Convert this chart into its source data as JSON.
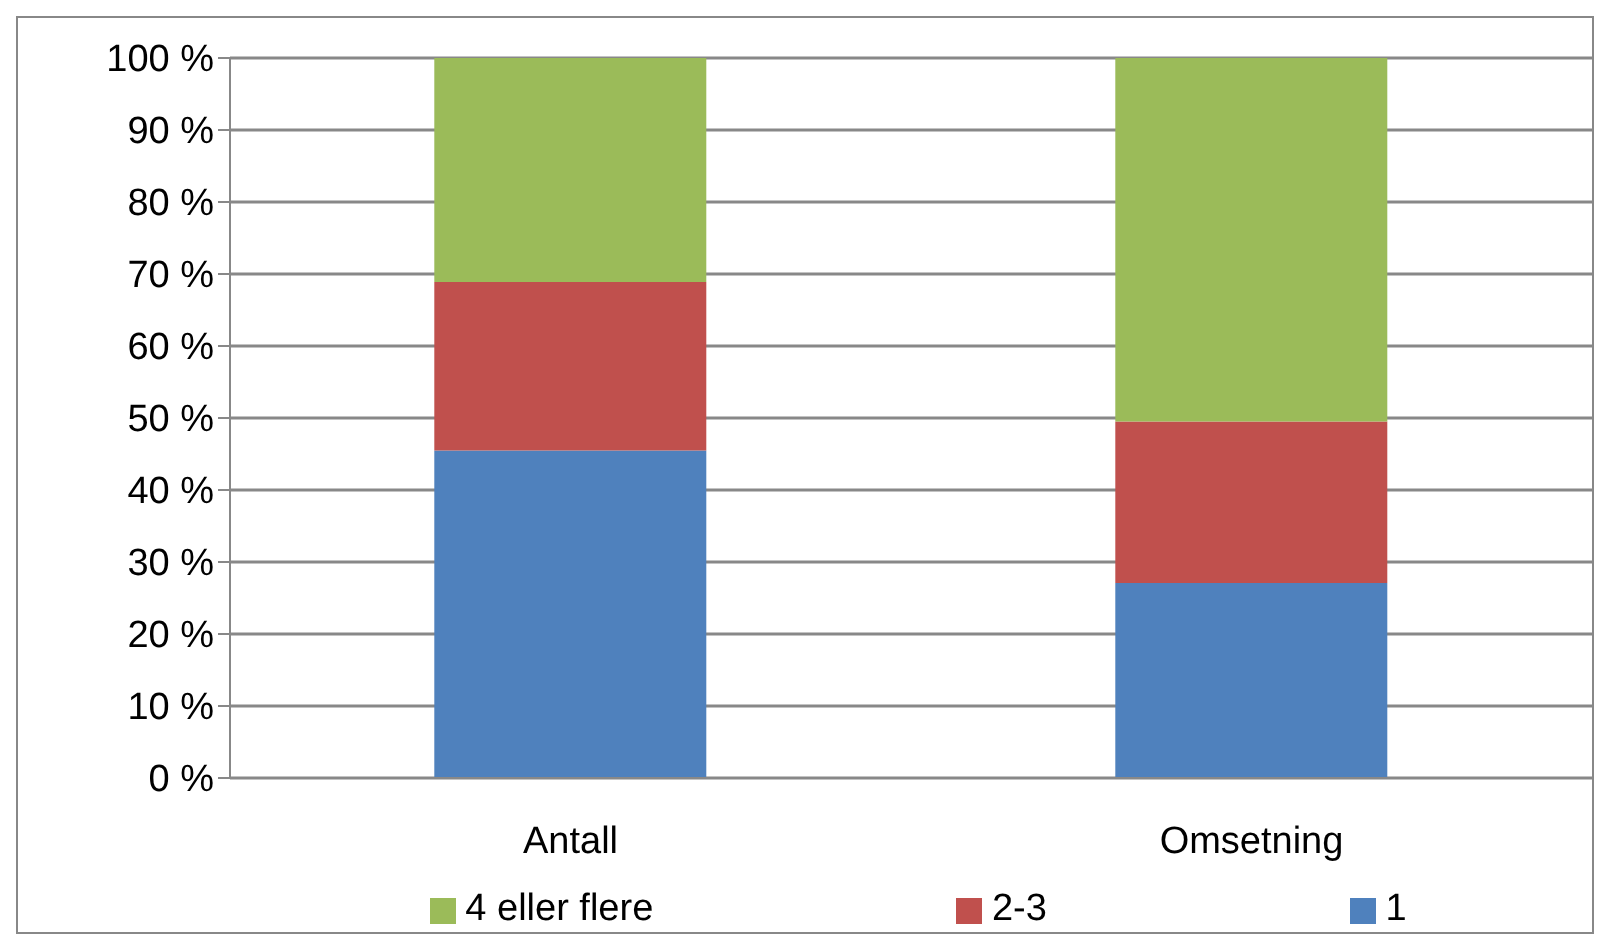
{
  "chart_data": {
    "type": "bar",
    "stacked": true,
    "categories": [
      "Antall",
      "Omsetning"
    ],
    "series": [
      {
        "name": "1",
        "color": "#4f81bd",
        "values": [
          45.5,
          27.1
        ]
      },
      {
        "name": "2-3",
        "color": "#c0504d",
        "values": [
          23.4,
          22.4
        ]
      },
      {
        "name": "4 eller flere",
        "color": "#9bbb59",
        "values": [
          31.1,
          50.5
        ]
      }
    ],
    "ylim": [
      0,
      100
    ],
    "yticks": [
      {
        "value": 0,
        "label": "0 %"
      },
      {
        "value": 10,
        "label": "10 %"
      },
      {
        "value": 20,
        "label": "20 %"
      },
      {
        "value": 30,
        "label": "30 %"
      },
      {
        "value": 40,
        "label": "40 %"
      },
      {
        "value": 50,
        "label": "50 %"
      },
      {
        "value": 60,
        "label": "60 %"
      },
      {
        "value": 70,
        "label": "70 %"
      },
      {
        "value": 80,
        "label": "80 %"
      },
      {
        "value": 90,
        "label": "90 %"
      },
      {
        "value": 100,
        "label": "100 %"
      }
    ],
    "grid": "y",
    "legend": "bottom"
  }
}
